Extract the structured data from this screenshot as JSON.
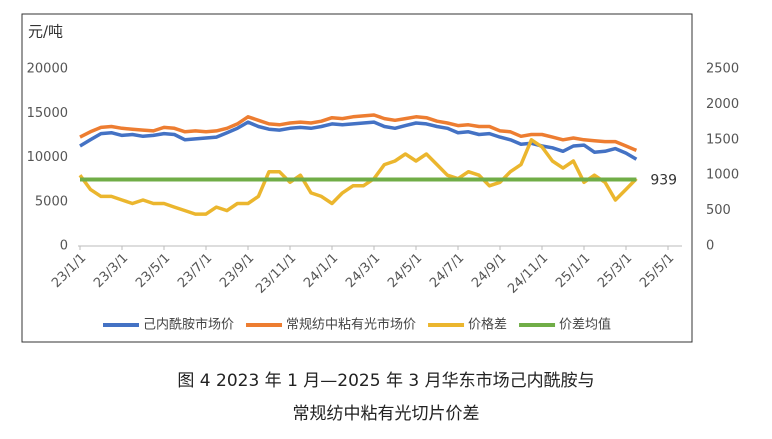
{
  "chart_data": {
    "type": "line",
    "y_label": "元/吨",
    "x": [
      "23/1/1",
      "23/1/16",
      "23/2/1",
      "23/2/16",
      "23/3/1",
      "23/3/16",
      "23/4/1",
      "23/4/16",
      "23/5/1",
      "23/5/16",
      "23/6/1",
      "23/6/16",
      "23/7/1",
      "23/7/16",
      "23/8/1",
      "23/8/16",
      "23/9/1",
      "23/9/16",
      "23/10/1",
      "23/10/16",
      "23/11/1",
      "23/11/16",
      "23/12/1",
      "23/12/16",
      "24/1/1",
      "24/1/16",
      "24/2/1",
      "24/2/16",
      "24/3/1",
      "24/3/16",
      "24/4/1",
      "24/4/16",
      "24/5/1",
      "24/5/16",
      "24/6/1",
      "24/6/16",
      "24/7/1",
      "24/7/16",
      "24/8/1",
      "24/8/16",
      "24/9/1",
      "24/9/16",
      "24/10/1",
      "24/10/16",
      "24/11/1",
      "24/11/16",
      "24/12/1",
      "24/12/16",
      "25/1/1",
      "25/1/16",
      "25/2/1",
      "25/2/16",
      "25/3/1",
      "25/3/16"
    ],
    "xlim": [
      "23/1/1",
      "25/5/1"
    ],
    "xticks": [
      "23/1/1",
      "23/3/1",
      "23/5/1",
      "23/7/1",
      "23/9/1",
      "23/11/1",
      "24/1/1",
      "24/3/1",
      "24/5/1",
      "24/7/1",
      "24/9/1",
      "24/11/1",
      "25/1/1",
      "25/3/1",
      "25/5/1"
    ],
    "ylim": [
      0,
      20000
    ],
    "yticks": [
      0,
      5000,
      10000,
      15000,
      20000
    ],
    "y2lim": [
      0,
      2500
    ],
    "y2ticks": [
      0,
      500,
      1000,
      1500,
      2000,
      2500
    ],
    "series": [
      {
        "name": "己内酰胺市场价",
        "color": "#4472c4",
        "values": [
          11300,
          12000,
          12700,
          12800,
          12500,
          12600,
          12400,
          12500,
          12700,
          12600,
          12000,
          12100,
          12200,
          12300,
          12800,
          13300,
          14000,
          13500,
          13200,
          13100,
          13300,
          13400,
          13300,
          13500,
          13800,
          13700,
          13800,
          13900,
          14000,
          13500,
          13300,
          13600,
          13900,
          13800,
          13500,
          13300,
          12800,
          12900,
          12600,
          12700,
          12300,
          12000,
          11500,
          11600,
          11300,
          11100,
          10700,
          11300,
          11400,
          10600,
          10700,
          11000,
          10500,
          9800
        ]
      },
      {
        "name": "常规纺中粘有光市场价",
        "color": "#ed7d31",
        "values": [
          12300,
          12900,
          13400,
          13500,
          13300,
          13200,
          13100,
          13000,
          13400,
          13300,
          12900,
          13000,
          12900,
          13000,
          13300,
          13800,
          14600,
          14200,
          13800,
          13700,
          13900,
          14000,
          13900,
          14100,
          14500,
          14400,
          14600,
          14700,
          14800,
          14400,
          14200,
          14400,
          14600,
          14500,
          14100,
          13900,
          13600,
          13700,
          13500,
          13500,
          13000,
          12900,
          12400,
          12600,
          12600,
          12300,
          12000,
          12200,
          12000,
          11900,
          11800,
          11800,
          11300,
          10800
        ]
      },
      {
        "name": "价格差",
        "color": "#ebb62e",
        "axis": "y2",
        "values": [
          1000,
          800,
          700,
          700,
          650,
          600,
          650,
          600,
          600,
          550,
          500,
          450,
          450,
          550,
          500,
          600,
          600,
          700,
          1050,
          1050,
          900,
          1000,
          750,
          700,
          600,
          750,
          850,
          850,
          950,
          1150,
          1200,
          1300,
          1200,
          1300,
          1150,
          1000,
          950,
          1050,
          1000,
          850,
          900,
          1050,
          1150,
          1500,
          1400,
          1200,
          1100,
          1200,
          900,
          1000,
          900,
          650,
          800,
          950
        ]
      },
      {
        "name": "价差均值",
        "color": "#70ad47",
        "axis": "y2",
        "values": [
          939,
          939,
          939,
          939,
          939,
          939,
          939,
          939,
          939,
          939,
          939,
          939,
          939,
          939,
          939,
          939,
          939,
          939,
          939,
          939,
          939,
          939,
          939,
          939,
          939,
          939,
          939,
          939,
          939,
          939,
          939,
          939,
          939,
          939,
          939,
          939,
          939,
          939,
          939,
          939,
          939,
          939,
          939,
          939,
          939,
          939,
          939,
          939,
          939,
          939,
          939,
          939,
          939,
          939
        ]
      }
    ],
    "caption": [
      "图 4  2023 年 1 月—2025 年 3 月华东市场己内酰胺与",
      "常规纺中粘有光切片价差"
    ]
  }
}
